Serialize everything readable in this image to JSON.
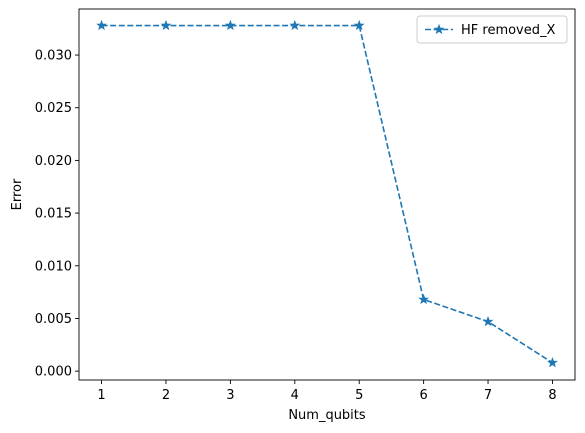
{
  "chart_data": {
    "type": "line",
    "title": "",
    "xlabel": "Num_qubits",
    "ylabel": "Error",
    "x": [
      1,
      2,
      3,
      4,
      5,
      6,
      7,
      8
    ],
    "series": [
      {
        "name": "HF removed_X",
        "values": [
          0.0328,
          0.0328,
          0.0328,
          0.0328,
          0.0328,
          0.0068,
          0.0047,
          0.0008
        ],
        "color": "#1f77b4",
        "linestyle": "dashed",
        "marker": "star"
      }
    ],
    "xlim": [
      0.65,
      8.35
    ],
    "ylim": [
      -0.00084,
      0.03437
    ],
    "xticks": [
      1,
      2,
      3,
      4,
      5,
      6,
      7,
      8
    ],
    "xtick_labels": [
      "1",
      "2",
      "3",
      "4",
      "5",
      "6",
      "7",
      "8"
    ],
    "yticks": [
      0.0,
      0.005,
      0.01,
      0.015,
      0.02,
      0.025,
      0.03
    ],
    "ytick_labels": [
      "0.000",
      "0.005",
      "0.010",
      "0.015",
      "0.020",
      "0.025",
      "0.030"
    ],
    "grid": false,
    "legend_position": "top-right"
  }
}
